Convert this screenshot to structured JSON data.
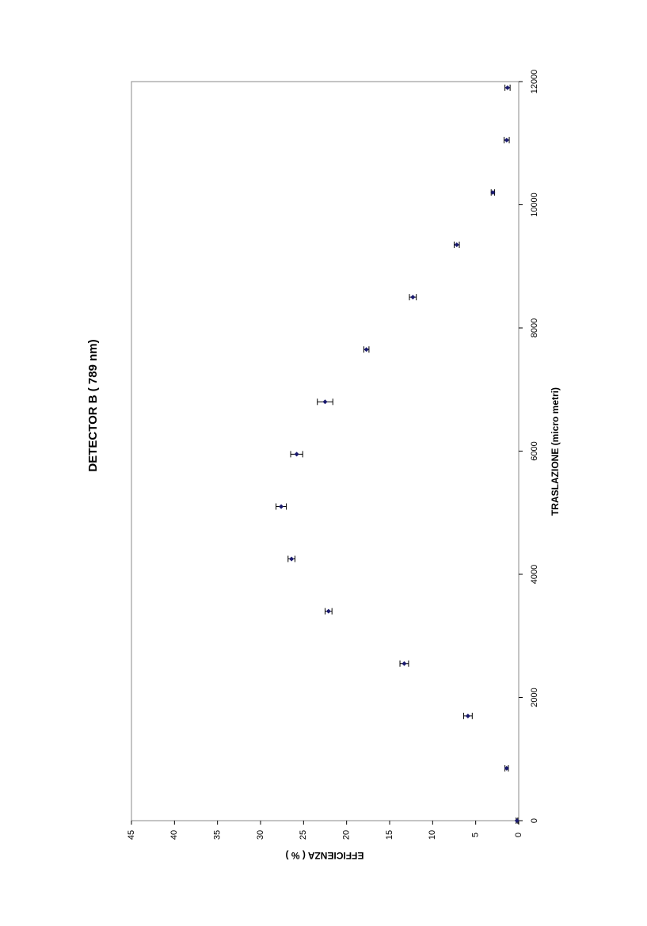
{
  "chart_data": {
    "type": "scatter",
    "title": "DETECTOR B ( 789 nm)",
    "x_label": "TRASLAZIONE (micro metri)",
    "y_label": "EFFICIENZA ( % )",
    "series": [
      {
        "name": "Detector B",
        "color": "#1a1a6e",
        "x": [
          0,
          850,
          1700,
          2550,
          3400,
          4250,
          5100,
          5950,
          6800,
          7650,
          8500,
          9350,
          10200,
          11050,
          11900
        ],
        "values": [
          0.2,
          1.4,
          5.9,
          13.3,
          22.1,
          26.4,
          27.6,
          25.8,
          22.5,
          17.7,
          12.3,
          7.2,
          3.0,
          1.4,
          1.3
        ],
        "errors": [
          0.1,
          0.2,
          0.5,
          0.5,
          0.4,
          0.4,
          0.6,
          0.7,
          0.9,
          0.3,
          0.4,
          0.3,
          0.2,
          0.3,
          0.3
        ]
      }
    ],
    "xlim": [
      0,
      12000
    ],
    "xticks": [
      0,
      2000,
      4000,
      6000,
      8000,
      10000,
      12000
    ],
    "ylim": [
      0,
      45
    ],
    "yticks": [
      0,
      5,
      10,
      15,
      20,
      25,
      30,
      35,
      40,
      45
    ],
    "grid": false
  }
}
